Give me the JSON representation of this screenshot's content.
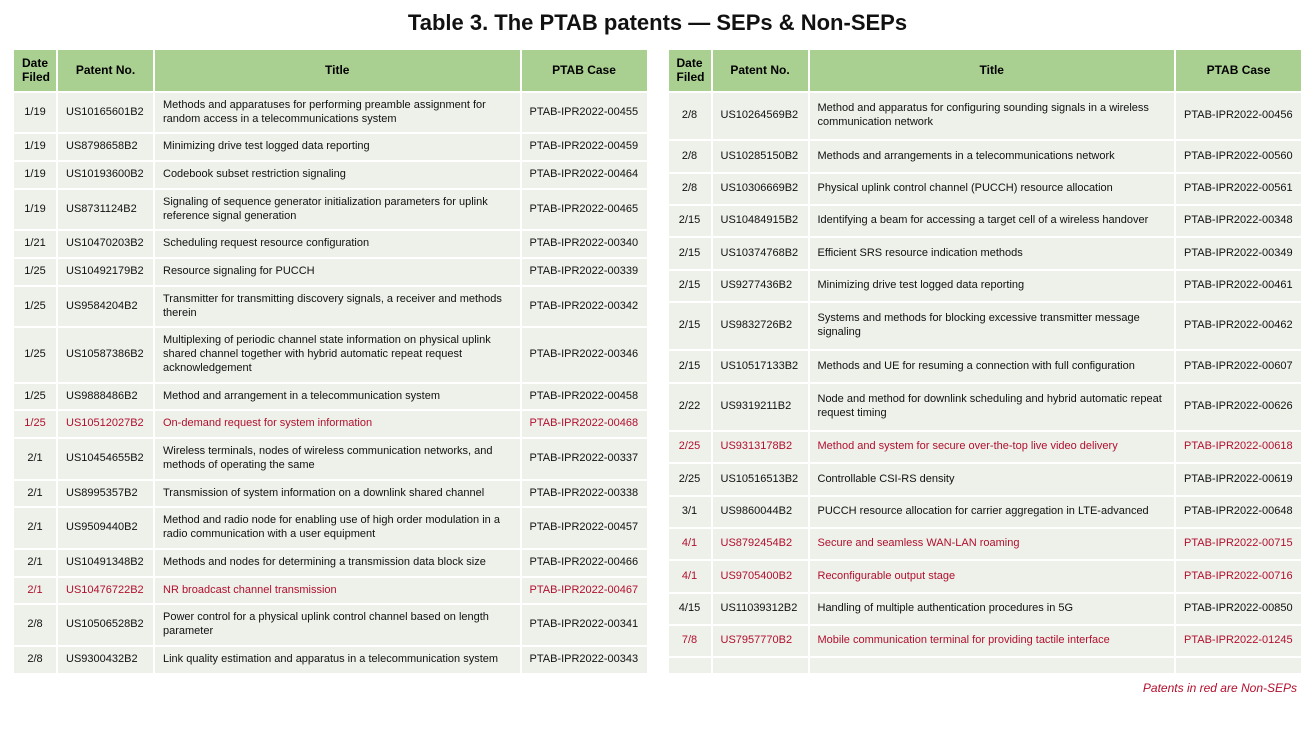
{
  "title": "Table 3. The PTAB patents — SEPs & Non-SEPs",
  "footnote": "Patents in red are Non-SEPs",
  "headers": {
    "date": "Date Filed",
    "patent": "Patent No.",
    "title": "Title",
    "case": "PTAB Case"
  },
  "left": [
    {
      "date": "1/19",
      "patent": "US10165601B2",
      "title": "Methods and apparatuses for performing preamble assignment for random access in a telecommunications system",
      "case": "PTAB-IPR2022-00455",
      "red": false
    },
    {
      "date": "1/19",
      "patent": "US8798658B2",
      "title": "Minimizing drive test logged data reporting",
      "case": "PTAB-IPR2022-00459",
      "red": false
    },
    {
      "date": "1/19",
      "patent": "US10193600B2",
      "title": "Codebook subset restriction signaling",
      "case": "PTAB-IPR2022-00464",
      "red": false
    },
    {
      "date": "1/19",
      "patent": "US8731124B2",
      "title": "Signaling of sequence generator initialization parameters for uplink reference signal generation",
      "case": "PTAB-IPR2022-00465",
      "red": false
    },
    {
      "date": "1/21",
      "patent": "US10470203B2",
      "title": "Scheduling request resource configuration",
      "case": "PTAB-IPR2022-00340",
      "red": false
    },
    {
      "date": "1/25",
      "patent": "US10492179B2",
      "title": "Resource signaling for PUCCH",
      "case": "PTAB-IPR2022-00339",
      "red": false
    },
    {
      "date": "1/25",
      "patent": "US9584204B2",
      "title": "Transmitter for transmitting discovery signals, a receiver and methods therein",
      "case": "PTAB-IPR2022-00342",
      "red": false
    },
    {
      "date": "1/25",
      "patent": "US10587386B2",
      "title": "Multiplexing of periodic channel state information on physical uplink shared channel together with hybrid automatic repeat request acknowledgement",
      "case": "PTAB-IPR2022-00346",
      "red": false
    },
    {
      "date": "1/25",
      "patent": "US9888486B2",
      "title": "Method and arrangement in a telecommunication system",
      "case": "PTAB-IPR2022-00458",
      "red": false
    },
    {
      "date": "1/25",
      "patent": "US10512027B2",
      "title": "On-demand request for system information",
      "case": "PTAB-IPR2022-00468",
      "red": true
    },
    {
      "date": "2/1",
      "patent": "US10454655B2",
      "title": "Wireless terminals, nodes of wireless communication networks, and methods of operating the same",
      "case": "PTAB-IPR2022-00337",
      "red": false
    },
    {
      "date": "2/1",
      "patent": "US8995357B2",
      "title": "Transmission of system information on a downlink shared channel",
      "case": "PTAB-IPR2022-00338",
      "red": false
    },
    {
      "date": "2/1",
      "patent": "US9509440B2",
      "title": "Method and radio node for enabling use of high order modulation in a radio communication with a user equipment",
      "case": "PTAB-IPR2022-00457",
      "red": false
    },
    {
      "date": "2/1",
      "patent": "US10491348B2",
      "title": "Methods and nodes for determining a transmission data block size",
      "case": "PTAB-IPR2022-00466",
      "red": false
    },
    {
      "date": "2/1",
      "patent": "US10476722B2",
      "title": "NR broadcast channel transmission",
      "case": "PTAB-IPR2022-00467",
      "red": true
    },
    {
      "date": "2/8",
      "patent": "US10506528B2",
      "title": "Power control for a physical uplink control channel based on length parameter",
      "case": "PTAB-IPR2022-00341",
      "red": false
    },
    {
      "date": "2/8",
      "patent": "US9300432B2",
      "title": "Link quality estimation and apparatus in a telecommunication system",
      "case": "PTAB-IPR2022-00343",
      "red": false
    }
  ],
  "right": [
    {
      "date": "2/8",
      "patent": "US10264569B2",
      "title": "Method and apparatus for configuring sounding signals in a wireless communication network",
      "case": "PTAB-IPR2022-00456",
      "red": false
    },
    {
      "date": "2/8",
      "patent": "US10285150B2",
      "title": "Methods and arrangements in a telecommunications network",
      "case": "PTAB-IPR2022-00560",
      "red": false
    },
    {
      "date": "2/8",
      "patent": "US10306669B2",
      "title": "Physical uplink control channel (PUCCH) resource allocation",
      "case": "PTAB-IPR2022-00561",
      "red": false
    },
    {
      "date": "2/15",
      "patent": "US10484915B2",
      "title": "Identifying a beam for accessing a target cell of a wireless handover",
      "case": "PTAB-IPR2022-00348",
      "red": false
    },
    {
      "date": "2/15",
      "patent": "US10374768B2",
      "title": "Efficient SRS resource indication methods",
      "case": "PTAB-IPR2022-00349",
      "red": false
    },
    {
      "date": "2/15",
      "patent": "US9277436B2",
      "title": "Minimizing drive test logged data reporting",
      "case": "PTAB-IPR2022-00461",
      "red": false
    },
    {
      "date": "2/15",
      "patent": "US9832726B2",
      "title": "Systems and methods for blocking excessive transmitter message signaling",
      "case": "PTAB-IPR2022-00462",
      "red": false
    },
    {
      "date": "2/15",
      "patent": "US10517133B2",
      "title": "Methods and UE for resuming a connection with full configuration",
      "case": "PTAB-IPR2022-00607",
      "red": false
    },
    {
      "date": "2/22",
      "patent": "US9319211B2",
      "title": "Node and method for downlink scheduling and hybrid automatic repeat request timing",
      "case": "PTAB-IPR2022-00626",
      "red": false
    },
    {
      "date": "2/25",
      "patent": "US9313178B2",
      "title": "Method and system for secure over-the-top live video delivery",
      "case": "PTAB-IPR2022-00618",
      "red": true
    },
    {
      "date": "2/25",
      "patent": "US10516513B2",
      "title": "Controllable CSI-RS density",
      "case": "PTAB-IPR2022-00619",
      "red": false
    },
    {
      "date": "3/1",
      "patent": "US9860044B2",
      "title": "PUCCH resource allocation for carrier aggregation in LTE-advanced",
      "case": "PTAB-IPR2022-00648",
      "red": false
    },
    {
      "date": "4/1",
      "patent": "US8792454B2",
      "title": "Secure and seamless WAN-LAN roaming",
      "case": "PTAB-IPR2022-00715",
      "red": true
    },
    {
      "date": "4/1",
      "patent": "US9705400B2",
      "title": "Reconfigurable output stage",
      "case": "PTAB-IPR2022-00716",
      "red": true
    },
    {
      "date": "4/15",
      "patent": "US11039312B2",
      "title": "Handling of multiple authentication procedures in 5G",
      "case": "PTAB-IPR2022-00850",
      "red": false
    },
    {
      "date": "7/8",
      "patent": "US7957770B2",
      "title": "Mobile communication terminal for providing tactile interface",
      "case": "PTAB-IPR2022-01245",
      "red": true
    },
    {
      "date": "",
      "patent": "",
      "title": "",
      "case": "",
      "red": false
    }
  ]
}
